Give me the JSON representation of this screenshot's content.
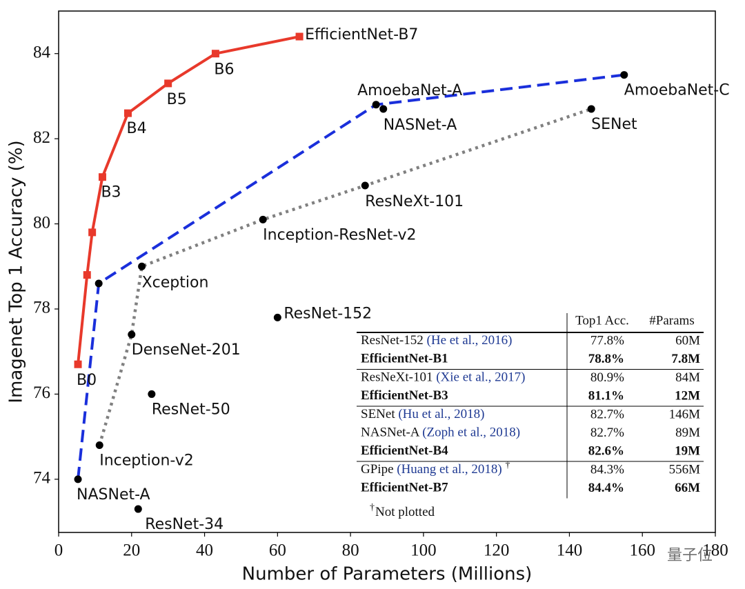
{
  "chart_data": {
    "type": "line",
    "x_label": "Number of Parameters (Millions)",
    "y_label": "Imagenet Top 1 Accuracy (%)",
    "xlim": [
      0,
      180
    ],
    "xticks": [
      0,
      20,
      40,
      60,
      80,
      100,
      120,
      140,
      160,
      180
    ],
    "ylim": [
      72.75,
      85
    ],
    "yticks": [
      74,
      76,
      78,
      80,
      82,
      84
    ],
    "grid": false,
    "series": [
      {
        "color": "#e8392b",
        "line_style": "solid",
        "marker": "square",
        "marker_color": "#e8392b",
        "x": [
          5.3,
          7.8,
          9.2,
          12,
          19,
          30,
          43,
          66
        ],
        "values": [
          76.7,
          78.8,
          79.8,
          81.1,
          82.6,
          83.3,
          84.0,
          84.4
        ],
        "labels": [
          "B0",
          null,
          null,
          "B3",
          "B4",
          "B5",
          "B6",
          "EfficientNet-B7"
        ]
      },
      {
        "color": "#1a2fdb",
        "line_style": "dashed",
        "marker": "circle",
        "marker_color": "#000000",
        "x": [
          5.3,
          11,
          87,
          155
        ],
        "values": [
          74.0,
          78.6,
          82.8,
          83.5
        ],
        "labels": [
          "NASNet-A",
          null,
          "AmoebaNet-A",
          "AmoebaNet-C"
        ]
      },
      {
        "color": "#808080",
        "line_style": "dotted",
        "marker": "circle",
        "marker_color": "#000000",
        "x": [
          11.2,
          20,
          22.8,
          56,
          84,
          146
        ],
        "values": [
          74.8,
          77.4,
          79.0,
          80.1,
          80.9,
          82.7
        ],
        "labels": [
          "Inception-v2",
          "DenseNet-201",
          "Xception",
          "Inception-ResNet-v2",
          "ResNeXt-101",
          "SENet"
        ]
      },
      {
        "color": "#000000",
        "line_style": "none",
        "marker": "circle",
        "marker_color": "#000000",
        "x": [
          60,
          25.5,
          21.8,
          89
        ],
        "values": [
          77.8,
          76.0,
          73.3,
          82.7
        ],
        "labels": [
          "ResNet-152",
          "ResNet-50",
          "ResNet-34",
          "NASNet-A"
        ]
      }
    ],
    "table": {
      "columns": [
        "Top1 Acc.",
        "#Params"
      ],
      "groups": [
        [
          {
            "model": "ResNet-152",
            "cite": "(He et al., 2016)",
            "acc": "77.8%",
            "params": "60M",
            "bold": false
          },
          {
            "model": "EfficientNet-B1",
            "acc": "78.8%",
            "params": "7.8M",
            "bold": true
          }
        ],
        [
          {
            "model": "ResNeXt-101",
            "cite": "(Xie et al., 2017)",
            "acc": "80.9%",
            "params": "84M",
            "bold": false
          },
          {
            "model": "EfficientNet-B3",
            "acc": "81.1%",
            "params": "12M",
            "bold": true
          }
        ],
        [
          {
            "model": "SENet",
            "cite": "(Hu et al., 2018)",
            "acc": "82.7%",
            "params": "146M",
            "bold": false
          },
          {
            "model": "NASNet-A",
            "cite": "(Zoph et al., 2018)",
            "acc": "82.7%",
            "params": "89M",
            "bold": false
          },
          {
            "model": "EfficientNet-B4",
            "acc": "82.6%",
            "params": "19M",
            "bold": true
          }
        ],
        [
          {
            "model": "GPipe",
            "cite": "(Huang et al., 2018)",
            "mark": "†",
            "acc": "84.3%",
            "params": "556M",
            "bold": false
          },
          {
            "model": "EfficientNet-B7",
            "acc": "84.4%",
            "params": "66M",
            "bold": true
          }
        ]
      ],
      "footnote_mark": "†",
      "footnote": "Not plotted"
    },
    "watermark": "量子位"
  }
}
